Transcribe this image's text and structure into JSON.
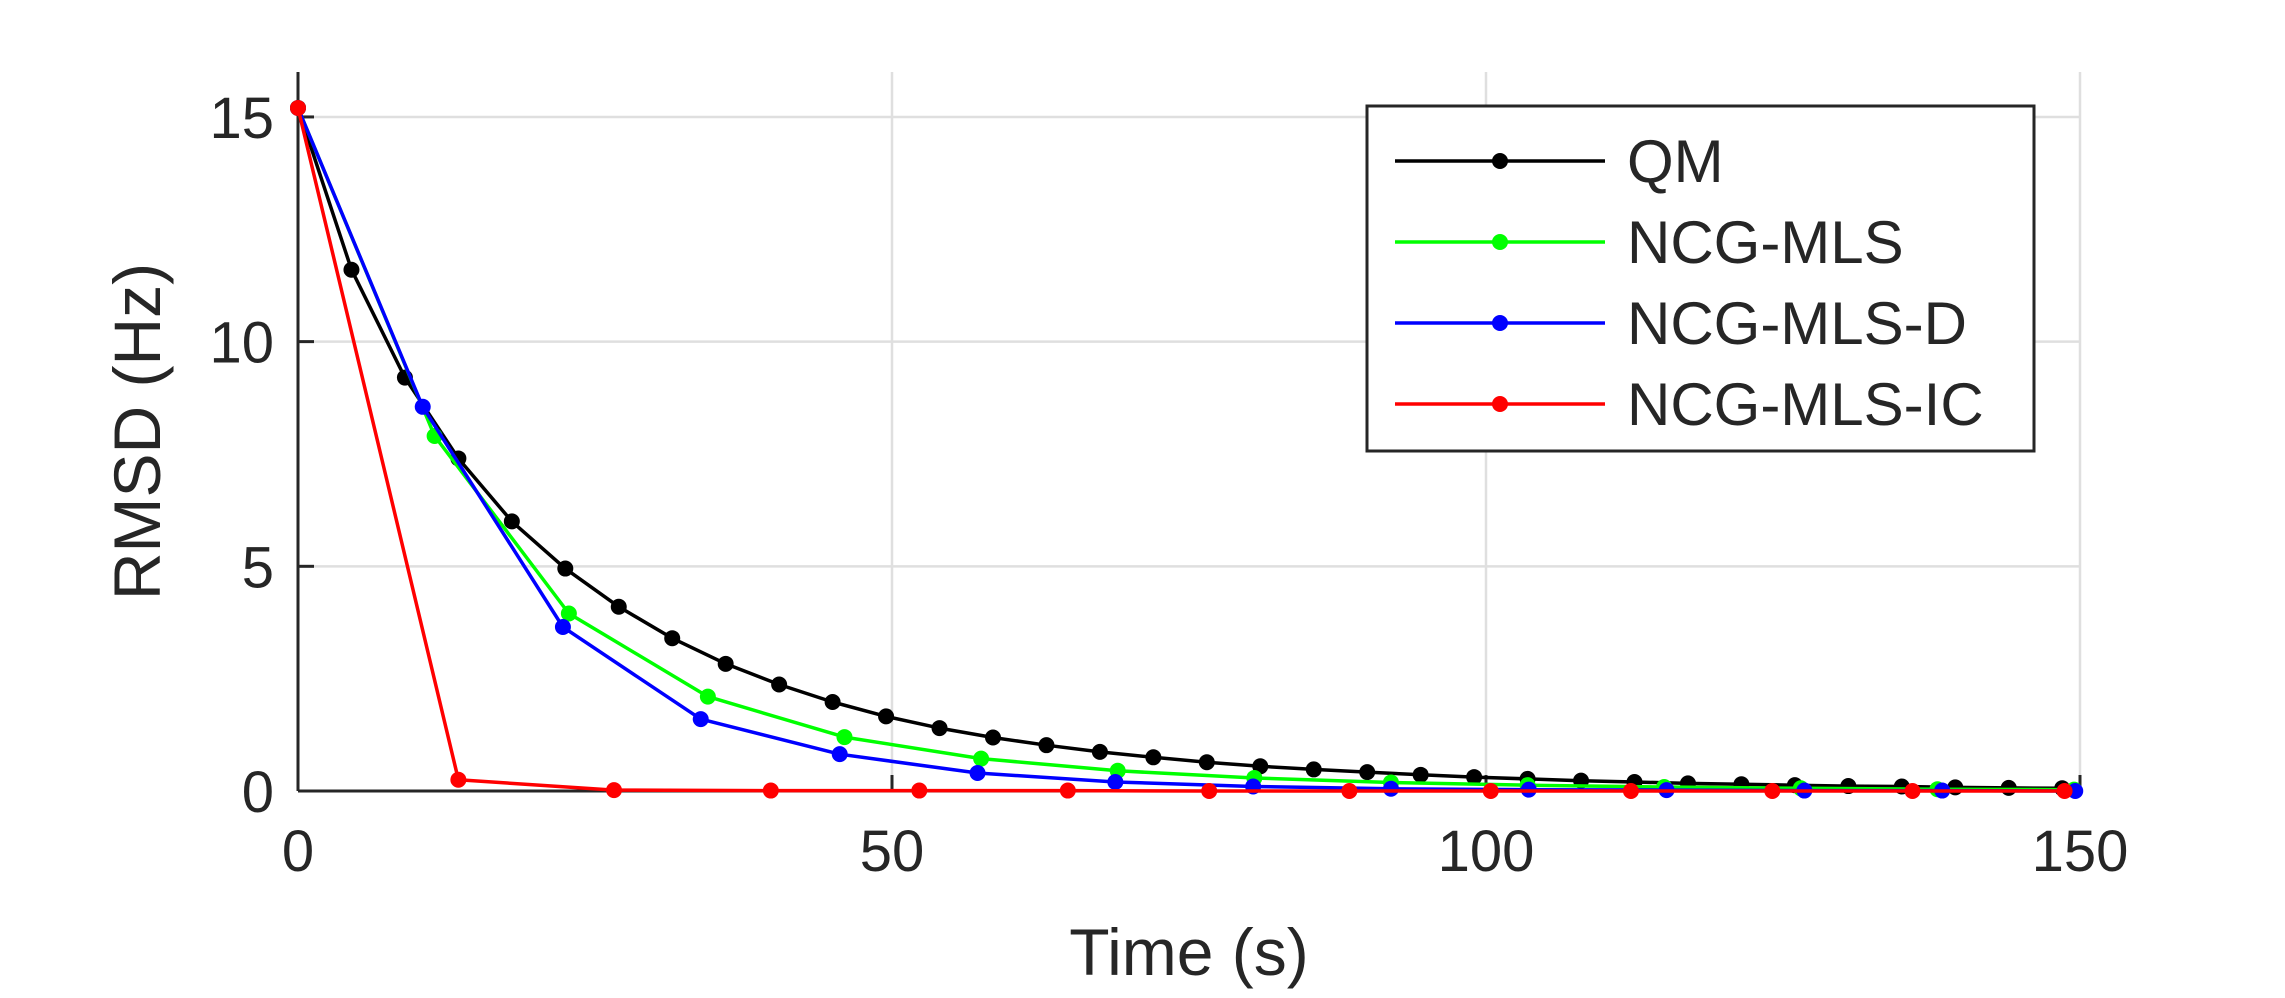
{
  "chart_data": {
    "type": "line",
    "title": "",
    "xlabel": "Time (s)",
    "ylabel": "RMSD (Hz)",
    "xlim": [
      0,
      150
    ],
    "ylim": [
      0,
      16
    ],
    "xticks": [
      0,
      50,
      100,
      150
    ],
    "yticks": [
      0,
      5,
      10,
      15
    ],
    "grid": true,
    "legend_position": "top-right",
    "series": [
      {
        "name": "QM",
        "color": "#000000",
        "x": [
          0,
          4.5,
          9,
          13.5,
          18,
          22.5,
          27,
          31.5,
          36,
          40.5,
          45,
          49.5,
          54,
          58.5,
          63,
          67.5,
          72,
          76.5,
          81,
          85.5,
          90,
          94.5,
          99,
          103.5,
          108,
          112.5,
          117,
          121.5,
          126,
          130.5,
          135,
          139.5,
          144,
          148.5
        ],
        "y": [
          15.2,
          11.6,
          9.2,
          7.4,
          6.0,
          4.95,
          4.1,
          3.4,
          2.83,
          2.37,
          1.98,
          1.66,
          1.4,
          1.19,
          1.02,
          0.87,
          0.75,
          0.64,
          0.55,
          0.48,
          0.42,
          0.36,
          0.31,
          0.27,
          0.23,
          0.2,
          0.17,
          0.15,
          0.13,
          0.11,
          0.1,
          0.08,
          0.07,
          0.06
        ]
      },
      {
        "name": "NCG-MLS",
        "color": "#00ff00",
        "x": [
          0,
          11.5,
          22.8,
          34.5,
          46,
          57.5,
          69,
          80.5,
          92,
          103.5,
          115,
          126.5,
          138,
          149.5
        ],
        "y": [
          15.2,
          7.9,
          3.95,
          2.1,
          1.2,
          0.72,
          0.45,
          0.29,
          0.19,
          0.13,
          0.09,
          0.06,
          0.04,
          0.03
        ]
      },
      {
        "name": "NCG-MLS-D",
        "color": "#0000ff",
        "x": [
          0,
          10.5,
          22.3,
          33.9,
          45.6,
          57.2,
          68.8,
          80.4,
          92,
          103.6,
          115.2,
          126.8,
          138.4,
          149.6
        ],
        "y": [
          15.2,
          8.55,
          3.65,
          1.6,
          0.82,
          0.4,
          0.2,
          0.1,
          0.05,
          0.03,
          0.02,
          0.01,
          0.01,
          0.0
        ]
      },
      {
        "name": "NCG-MLS-IC",
        "color": "#ff0000",
        "x": [
          0,
          13.5,
          26.6,
          39.8,
          52.3,
          64.8,
          76.7,
          88.5,
          100.4,
          112.2,
          124.1,
          135.9,
          148.7
        ],
        "y": [
          15.2,
          0.25,
          0.02,
          0.01,
          0.01,
          0.01,
          0.0,
          0.0,
          0.0,
          0.0,
          0.0,
          0.0,
          0.0
        ]
      }
    ]
  }
}
